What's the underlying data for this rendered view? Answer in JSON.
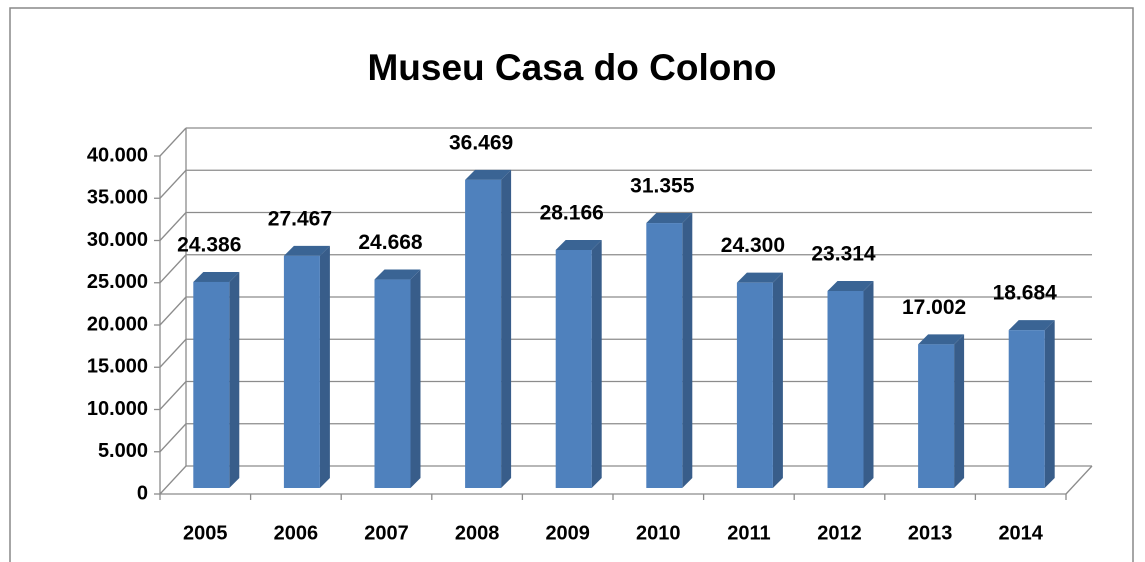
{
  "chart_data": {
    "type": "bar3d",
    "title": "Museu Casa do Colono",
    "categories": [
      "2005",
      "2006",
      "2007",
      "2008",
      "2009",
      "2010",
      "2011",
      "2012",
      "2013",
      "2014"
    ],
    "values": [
      24386,
      27467,
      24668,
      36469,
      28166,
      31355,
      24300,
      23314,
      17002,
      18684
    ],
    "value_labels": [
      "24.386",
      "27.467",
      "24.668",
      "36.469",
      "28.166",
      "31.355",
      "24.300",
      "23.314",
      "17.002",
      "18.684"
    ],
    "color": "#4f81bd",
    "ylim": [
      0,
      40000
    ],
    "yticks": [
      0,
      {
        "value": 5000,
        "label": "5.000"
      },
      {
        "value": 10000,
        "label": "10.000"
      },
      {
        "value": 15000,
        "label": "15.000"
      },
      {
        "value": 20000,
        "label": "20.000"
      },
      {
        "value": 25000,
        "label": "25.000"
      },
      {
        "value": 30000,
        "label": "30.000"
      },
      {
        "value": 35000,
        "label": "35.000"
      },
      {
        "value": 40000,
        "label": "40.000"
      }
    ],
    "grid": true
  }
}
